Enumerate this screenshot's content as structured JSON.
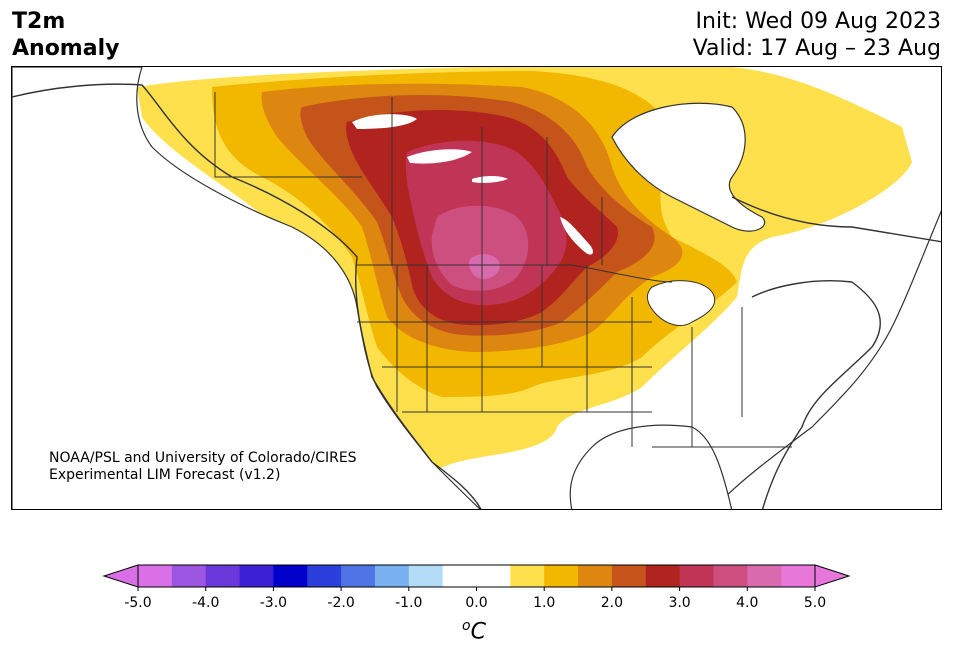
{
  "header": {
    "title_line1": "T2m",
    "title_line2": "Anomaly",
    "init": "Init: Wed 09 Aug 2023",
    "valid": "Valid: 17 Aug – 23 Aug"
  },
  "credit": {
    "line1": "NOAA/PSL and University of Colorado/CIRES",
    "line2": "Experimental LIM Forecast (v1.2)"
  },
  "colorbar": {
    "unit_base": "C",
    "unit_sup": "o",
    "ticks": [
      "-5.0",
      "-4.0",
      "-3.0",
      "-2.0",
      "-1.0",
      "0.0",
      "1.0",
      "2.0",
      "3.0",
      "4.0",
      "5.0"
    ],
    "colors": [
      "#da70e6",
      "#9b55e0",
      "#6a38da",
      "#3a1fd4",
      "#0000cc",
      "#2a3fdc",
      "#4f75e4",
      "#78b0f0",
      "#b0dcf8",
      "#ffffff",
      "#ffffff",
      "#fde04c",
      "#f2b800",
      "#de8710",
      "#c5541a",
      "#b0231f",
      "#c03455",
      "#cc4f7f",
      "#d86aae",
      "#e777d8"
    ],
    "under_color": "#da70e6",
    "over_color": "#e777d8"
  },
  "map": {
    "region": "North America",
    "variable": "2 m temperature anomaly",
    "levels_colors": [
      "#fde04c",
      "#f2b800",
      "#de8710",
      "#c5541a",
      "#b0231f",
      "#c03455",
      "#cc4f7f",
      "#d86aae"
    ]
  }
}
